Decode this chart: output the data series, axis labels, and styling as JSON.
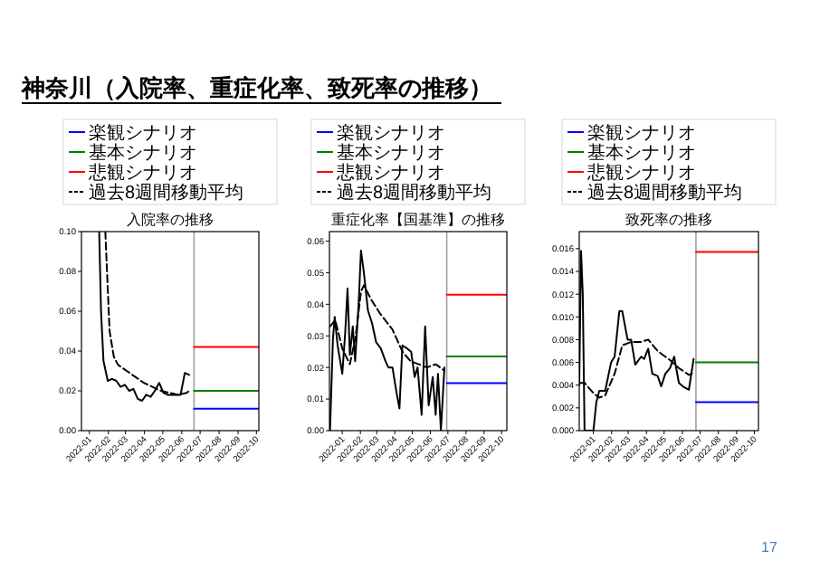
{
  "chart_data": [
    {
      "type": "other",
      "title": "神奈川（入院率、重症化率、致死率の推移）",
      "annotations": [
        "17"
      ]
    },
    {
      "type": "line",
      "title": "入院率の推移",
      "xlim": [
        "2021-12-19",
        "2022-10-05"
      ],
      "xticks": [
        "2022-01",
        "2022-02",
        "2022-03",
        "2022-04",
        "2022-05",
        "2022-06",
        "2022-07",
        "2022-08",
        "2022-09",
        "2022-10"
      ],
      "ylim": [
        0,
        0.1
      ],
      "yticks": [
        {
          "value": 0,
          "label": "0.00"
        },
        {
          "value": 0.02,
          "label": "0.02"
        },
        {
          "value": 0.04,
          "label": "0.04"
        },
        {
          "value": 0.06,
          "label": "0.06"
        },
        {
          "value": 0.08,
          "label": "0.08"
        },
        {
          "value": 0.1,
          "label": "0.10"
        }
      ],
      "legend": "top",
      "ref_lines": [
        {
          "axis": "x",
          "value": "2022-06-21",
          "color": "#a0a0a0"
        }
      ],
      "series": [
        {
          "color": "#000000",
          "x": [
            "2022-01-17",
            "2022-01-20",
            "2022-01-24",
            "2022-01-31",
            "2022-02-07",
            "2022-02-14",
            "2022-02-21",
            "2022-02-28",
            "2022-03-07",
            "2022-03-14",
            "2022-03-21",
            "2022-03-28",
            "2022-04-04",
            "2022-04-11",
            "2022-04-18",
            "2022-04-25",
            "2022-05-02",
            "2022-05-09",
            "2022-05-16",
            "2022-05-23",
            "2022-05-30",
            "2022-06-06",
            "2022-06-13"
          ],
          "values": [
            0.1,
            0.06,
            0.035,
            0.025,
            0.026,
            0.025,
            0.022,
            0.023,
            0.02,
            0.021,
            0.016,
            0.015,
            0.018,
            0.017,
            0.02,
            0.024,
            0.019,
            0.018,
            0.018,
            0.018,
            0.018,
            0.029,
            0.028
          ]
        },
        {
          "name": "楽観シナリオ",
          "color": "#0000ff",
          "x": [
            "2022-06-21",
            "2022-10-05"
          ],
          "values": [
            0.011,
            0.011
          ]
        },
        {
          "name": "基本シナリオ",
          "color": "#008000",
          "x": [
            "2022-06-21",
            "2022-10-05"
          ],
          "values": [
            0.02,
            0.02
          ]
        },
        {
          "name": "悲観シナリオ",
          "color": "#ff0000",
          "x": [
            "2022-06-21",
            "2022-10-05"
          ],
          "values": [
            0.042,
            0.042
          ]
        },
        {
          "name": "過去8週間移動平均",
          "color": "#000000",
          "line_style": "dashed",
          "x": [
            "2022-01-27",
            "2022-02-03",
            "2022-02-10",
            "2022-02-17",
            "2022-03-03",
            "2022-03-17",
            "2022-03-31",
            "2022-04-14",
            "2022-04-28",
            "2022-05-12",
            "2022-05-26",
            "2022-06-09",
            "2022-06-13"
          ],
          "values": [
            0.1,
            0.05,
            0.037,
            0.033,
            0.03,
            0.027,
            0.024,
            0.022,
            0.02,
            0.019,
            0.018,
            0.019,
            0.02
          ]
        }
      ]
    },
    {
      "type": "line",
      "title": "重症化率【国基準】の推移",
      "xlim": [
        "2021-12-10",
        "2022-10-10"
      ],
      "xticks": [
        "2022-01",
        "2022-02",
        "2022-03",
        "2022-04",
        "2022-05",
        "2022-06",
        "2022-07",
        "2022-08",
        "2022-09",
        "2022-10"
      ],
      "ylim": [
        0,
        0.063
      ],
      "yticks": [
        {
          "value": 0,
          "label": "0.00"
        },
        {
          "value": 0.01,
          "label": "0.01"
        },
        {
          "value": 0.02,
          "label": "0.02"
        },
        {
          "value": 0.03,
          "label": "0.03"
        },
        {
          "value": 0.04,
          "label": "0.04"
        },
        {
          "value": 0.05,
          "label": "0.05"
        },
        {
          "value": 0.06,
          "label": "0.06"
        }
      ],
      "legend": "top",
      "ref_lines": [
        {
          "axis": "x",
          "value": "2022-06-29",
          "color": "#a0a0a0"
        }
      ],
      "series": [
        {
          "color": "#000000",
          "x": [
            "2021-12-11",
            "2021-12-16",
            "2021-12-19",
            "2021-12-24",
            "2022-01-01",
            "2022-01-06",
            "2022-01-10",
            "2022-01-14",
            "2022-01-19",
            "2022-01-23",
            "2022-01-29",
            "2022-02-02",
            "2022-02-07",
            "2022-02-14",
            "2022-02-21",
            "2022-02-28",
            "2022-03-08",
            "2022-03-16",
            "2022-03-21",
            "2022-03-28",
            "2022-04-04",
            "2022-04-09",
            "2022-04-14",
            "2022-04-22",
            "2022-04-29",
            "2022-05-05",
            "2022-05-10",
            "2022-05-17",
            "2022-05-23",
            "2022-05-29",
            "2022-06-05",
            "2022-06-10",
            "2022-06-14",
            "2022-06-19",
            "2022-06-25"
          ],
          "values": [
            0.0,
            0.029,
            0.036,
            0.027,
            0.018,
            0.031,
            0.045,
            0.024,
            0.033,
            0.022,
            0.04,
            0.057,
            0.05,
            0.038,
            0.034,
            0.028,
            0.026,
            0.022,
            0.02,
            0.02,
            0.012,
            0.007,
            0.027,
            0.026,
            0.025,
            0.017,
            0.02,
            0.005,
            0.033,
            0.008,
            0.017,
            0.005,
            0.018,
            0.0,
            0.02
          ]
        },
        {
          "name": "楽観シナリオ",
          "color": "#0000ff",
          "x": [
            "2022-06-29",
            "2022-10-10"
          ],
          "values": [
            0.015,
            0.015
          ]
        },
        {
          "name": "基本シナリオ",
          "color": "#008000",
          "x": [
            "2022-06-29",
            "2022-10-10"
          ],
          "values": [
            0.0235,
            0.0235
          ]
        },
        {
          "name": "悲観シナリオ",
          "color": "#ff0000",
          "x": [
            "2022-06-29",
            "2022-10-10"
          ],
          "values": [
            0.043,
            0.043
          ]
        },
        {
          "name": "過去8週間移動平均",
          "color": "#000000",
          "line_style": "dashed",
          "x": [
            "2021-12-11",
            "2021-12-20",
            "2022-01-01",
            "2022-01-14",
            "2022-01-24",
            "2022-02-02",
            "2022-02-07",
            "2022-02-21",
            "2022-03-07",
            "2022-03-28",
            "2022-04-14",
            "2022-04-28",
            "2022-05-12",
            "2022-05-26",
            "2022-06-10",
            "2022-06-25"
          ],
          "values": [
            0.033,
            0.035,
            0.026,
            0.021,
            0.03,
            0.044,
            0.046,
            0.041,
            0.037,
            0.032,
            0.025,
            0.022,
            0.021,
            0.02,
            0.021,
            0.019
          ]
        }
      ]
    },
    {
      "type": "line",
      "title": "致死率の推移",
      "xlim": [
        "2021-12-08",
        "2022-10-08"
      ],
      "xticks": [
        "2022-01",
        "2022-02",
        "2022-03",
        "2022-04",
        "2022-05",
        "2022-06",
        "2022-07",
        "2022-08",
        "2022-09",
        "2022-10"
      ],
      "ylim": [
        0,
        0.0175
      ],
      "yticks": [
        {
          "value": 0,
          "label": "0.000"
        },
        {
          "value": 0.002,
          "label": "0.002"
        },
        {
          "value": 0.004,
          "label": "0.004"
        },
        {
          "value": 0.006,
          "label": "0.006"
        },
        {
          "value": 0.008,
          "label": "0.008"
        },
        {
          "value": 0.01,
          "label": "0.010"
        },
        {
          "value": 0.012,
          "label": "0.012"
        },
        {
          "value": 0.014,
          "label": "0.014"
        },
        {
          "value": 0.016,
          "label": "0.016"
        }
      ],
      "legend": "top",
      "ref_lines": [
        {
          "axis": "x",
          "value": "2022-06-24",
          "color": "#a0a0a0"
        }
      ],
      "series": [
        {
          "color": "#000000",
          "x": [
            "2021-12-08",
            "2021-12-11",
            "2021-12-14",
            "2021-12-17",
            "2021-12-24",
            "2022-01-01",
            "2022-01-06",
            "2022-01-11",
            "2022-01-21",
            "2022-01-31",
            "2022-02-06",
            "2022-02-14",
            "2022-02-19",
            "2022-02-28",
            "2022-03-06",
            "2022-03-13",
            "2022-03-23",
            "2022-03-28",
            "2022-04-04",
            "2022-04-11",
            "2022-04-20",
            "2022-04-26",
            "2022-05-03",
            "2022-05-11",
            "2022-05-18",
            "2022-05-26",
            "2022-06-04",
            "2022-06-12",
            "2022-06-20"
          ],
          "values": [
            0.004,
            0.0158,
            0.012,
            0.0,
            0.0,
            0.0,
            0.0025,
            0.0035,
            0.0035,
            0.006,
            0.0065,
            0.0105,
            0.0105,
            0.008,
            0.008,
            0.0058,
            0.0065,
            0.0063,
            0.0072,
            0.005,
            0.0048,
            0.0039,
            0.005,
            0.0055,
            0.0065,
            0.0042,
            0.0038,
            0.0036,
            0.0063
          ]
        },
        {
          "name": "楽観シナリオ",
          "color": "#0000ff",
          "x": [
            "2022-06-24",
            "2022-10-08"
          ],
          "values": [
            0.0025,
            0.0025
          ]
        },
        {
          "name": "基本シナリオ",
          "color": "#008000",
          "x": [
            "2022-06-24",
            "2022-10-08"
          ],
          "values": [
            0.006,
            0.006
          ]
        },
        {
          "name": "悲観シナリオ",
          "color": "#ff0000",
          "x": [
            "2022-06-24",
            "2022-10-08"
          ],
          "values": [
            0.0157,
            0.0157
          ]
        },
        {
          "name": "過去8週間移動平均",
          "color": "#000000",
          "line_style": "dashed",
          "x": [
            "2021-12-08",
            "2021-12-17",
            "2022-01-01",
            "2022-01-11",
            "2022-01-21",
            "2022-02-06",
            "2022-02-19",
            "2022-03-06",
            "2022-03-23",
            "2022-04-04",
            "2022-04-20",
            "2022-05-11",
            "2022-05-26",
            "2022-06-12",
            "2022-06-20"
          ],
          "values": [
            0.0042,
            0.0042,
            0.0033,
            0.0029,
            0.0031,
            0.005,
            0.0075,
            0.0078,
            0.0078,
            0.008,
            0.007,
            0.0062,
            0.0055,
            0.0049,
            0.0051
          ]
        }
      ]
    }
  ]
}
